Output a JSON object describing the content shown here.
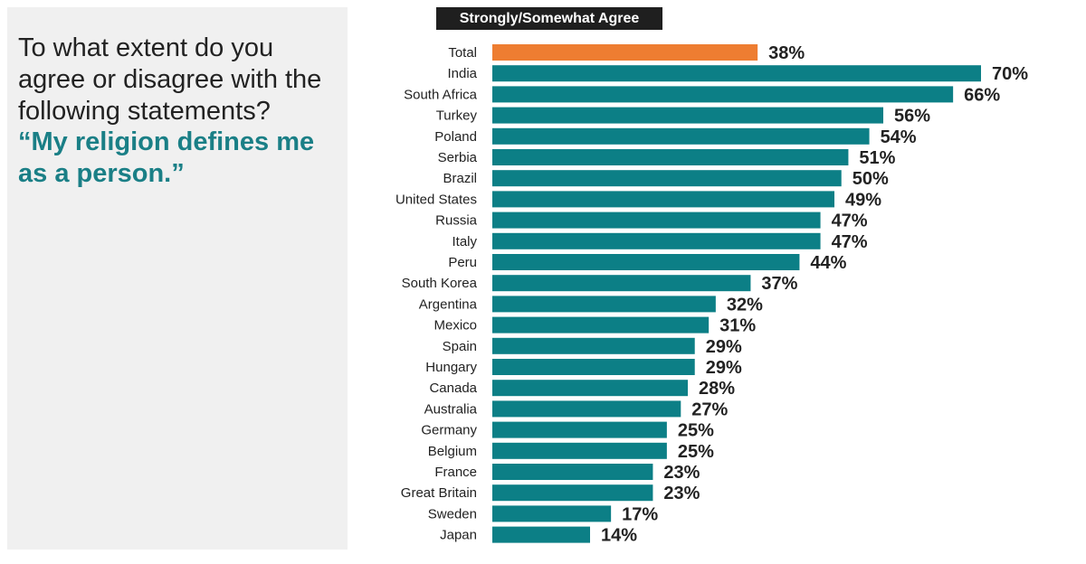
{
  "question": "To what extent do you agree or disagree with the following statements?",
  "chart_data": {
    "type": "bar",
    "orientation": "horizontal",
    "title": "“My religion defines me as a person.”",
    "legend": "Strongly/Somewhat Agree",
    "value_suffix": "%",
    "xlim": [
      0,
      70
    ],
    "colors": {
      "total": "#ee7d31",
      "country": "#0c7f86"
    },
    "categories": [
      "Total",
      "India",
      "South Africa",
      "Turkey",
      "Poland",
      "Serbia",
      "Brazil",
      "United States",
      "Russia",
      "Italy",
      "Peru",
      "South Korea",
      "Argentina",
      "Mexico",
      "Spain",
      "Hungary",
      "Canada",
      "Australia",
      "Germany",
      "Belgium",
      "France",
      "Great Britain",
      "Sweden",
      "Japan"
    ],
    "values": [
      38,
      70,
      66,
      56,
      54,
      51,
      50,
      49,
      47,
      47,
      44,
      37,
      32,
      31,
      29,
      29,
      28,
      27,
      25,
      25,
      23,
      23,
      17,
      14
    ]
  }
}
